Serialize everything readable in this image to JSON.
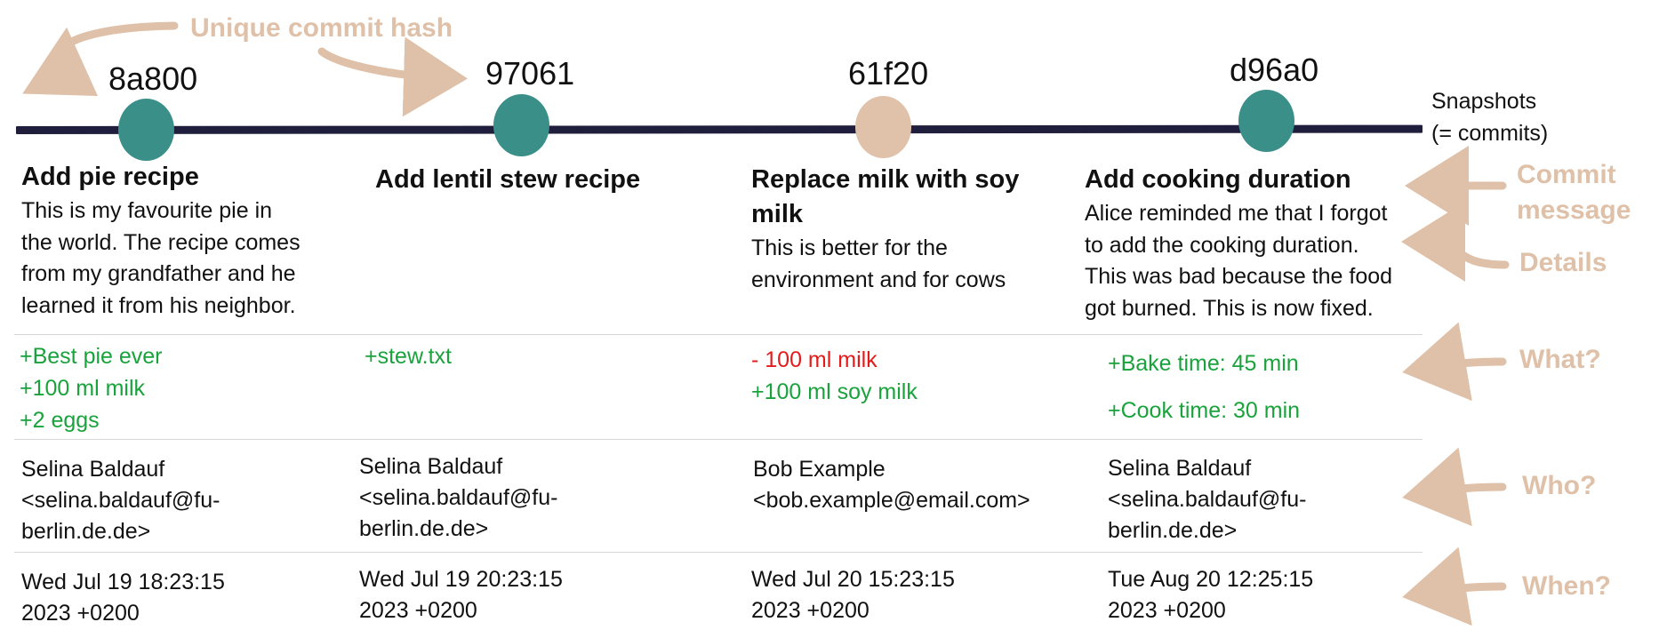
{
  "timeline": {
    "end_label": "Snapshots\n(= commits)"
  },
  "annotations": {
    "hash_label": "Unique commit hash",
    "commit_message": "Commit message",
    "details": "Details",
    "what": "What?",
    "who": "Who?",
    "when": "When?"
  },
  "colors": {
    "timeline": "#1f1f3d",
    "node_teal": "#3a8f88",
    "node_beige": "#e0c2aa",
    "annotation": "#dfc0a8",
    "addition": "#1aa33c",
    "deletion": "#e41b1b"
  },
  "commits": [
    {
      "hash": "8a800",
      "node_color": "teal",
      "title": "Add pie recipe",
      "description": "This is my favourite pie in\nthe world. The recipe comes\nfrom my grandfather and he\nlearned it from his neighbor.",
      "changes": [
        {
          "type": "add",
          "text": "+Best pie ever"
        },
        {
          "type": "add",
          "text": "+100 ml milk"
        },
        {
          "type": "add",
          "text": "+2 eggs"
        }
      ],
      "author": "Selina Baldauf\n<selina.baldauf@fu-\nberlin.de.de>",
      "date": "Wed Jul 19 18:23:15\n2023 +0200"
    },
    {
      "hash": "97061",
      "node_color": "teal",
      "title": "Add lentil stew recipe",
      "description": "",
      "changes": [
        {
          "type": "add",
          "text": "+stew.txt"
        }
      ],
      "author": "Selina Baldauf\n<selina.baldauf@fu-\nberlin.de.de>",
      "date": "Wed Jul 19 20:23:15\n2023 +0200"
    },
    {
      "hash": "61f20",
      "node_color": "beige",
      "title": "Replace milk with soy\nmilk",
      "description": "This is better for the\nenvironment and for cows",
      "changes": [
        {
          "type": "del",
          "text": "- 100 ml milk"
        },
        {
          "type": "add",
          "text": "+100 ml soy milk"
        }
      ],
      "author": "Bob Example\n<bob.example@email.com>",
      "date": "Wed Jul 20 15:23:15\n2023 +0200"
    },
    {
      "hash": "d96a0",
      "node_color": "teal",
      "title": "Add cooking duration",
      "description": "Alice reminded me that I forgot\nto add the cooking duration.\nThis was bad because the food\ngot burned. This is now fixed.",
      "changes": [
        {
          "type": "add",
          "text": "+Bake time: 45 min"
        },
        {
          "type": "add",
          "text": "+Cook time: 30 min"
        }
      ],
      "author": "Selina Baldauf\n<selina.baldauf@fu-\nberlin.de.de>",
      "date": "Tue Aug 20 12:25:15\n2023 +0200"
    }
  ]
}
